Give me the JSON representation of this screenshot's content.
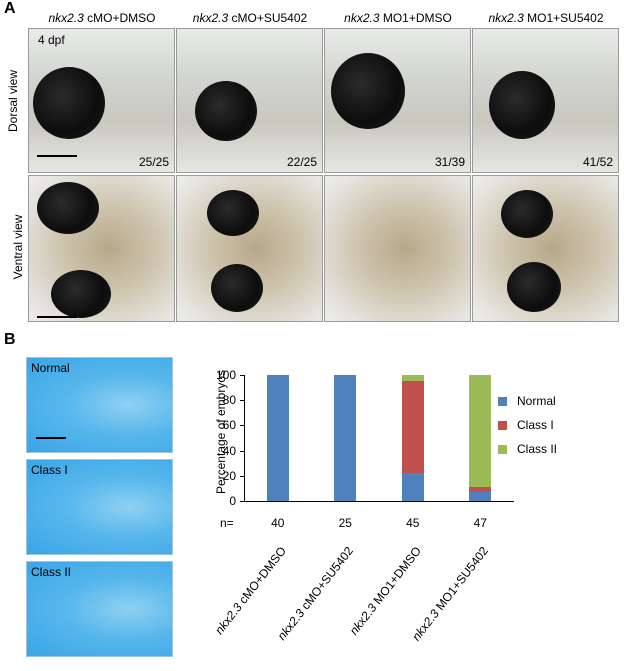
{
  "panel_a": {
    "letter": "A",
    "stage": "4 dpf",
    "columns": [
      {
        "gene": "nkx2.3",
        "rest": " cMO+DMSO"
      },
      {
        "gene": "nkx2.3",
        "rest": " cMO+SU5402"
      },
      {
        "gene": "nkx2.3",
        "rest": " MO1+DMSO"
      },
      {
        "gene": "nkx2.3",
        "rest": " MO1+SU5402"
      }
    ],
    "rows": [
      "Dorsal view",
      "Ventral view"
    ],
    "counts": [
      "25/25",
      "22/25",
      "31/39",
      "41/52"
    ]
  },
  "panel_b": {
    "letter": "B",
    "cartilage_labels": [
      "Normal",
      "Class I",
      "Class II"
    ]
  },
  "chart_data": {
    "type": "bar",
    "stacked": true,
    "categories": [
      "nkx2.3 cMO+DMSO",
      "nkx2.3 cMO+SU5402",
      "nkx2.3 MO1+DMSO",
      "nkx2.3 MO1+SU5402"
    ],
    "n_label": "n=",
    "n_values": [
      "40",
      "25",
      "45",
      "47"
    ],
    "series": [
      {
        "name": "Normal",
        "color": "#4f81bd",
        "values": [
          100,
          100,
          22,
          7
        ]
      },
      {
        "name": "Class I",
        "color": "#c0504d",
        "values": [
          0,
          0,
          73,
          4
        ]
      },
      {
        "name": "Class II",
        "color": "#9bbb59",
        "values": [
          0,
          0,
          5,
          89
        ]
      }
    ],
    "ylabel": "Percentage of embryos",
    "ylim": [
      0,
      100
    ],
    "yticks": [
      "0",
      "20",
      "40",
      "60",
      "80",
      "100"
    ],
    "legend_position": "right",
    "grid": false
  }
}
